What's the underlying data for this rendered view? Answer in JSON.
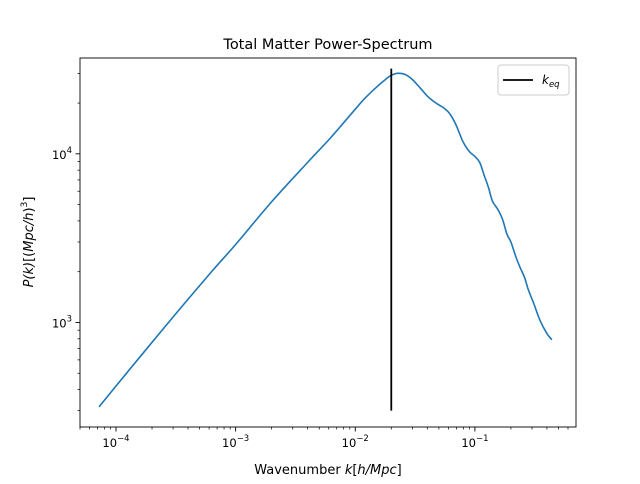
{
  "chart_data": {
    "type": "line",
    "title": "Total Matter Power-Spectrum",
    "xlabel": "Wavenumber k[h/Mpc]",
    "ylabel": "P(k)[(Mpc/h)^3]",
    "xscale": "log",
    "yscale": "log",
    "xlim": [
      5e-05,
      0.7
    ],
    "ylim": [
      240,
      37000
    ],
    "grid": false,
    "legend_position": "top-right",
    "x_ticks": [
      {
        "value": 0.0001,
        "base": "10",
        "exp": "−4"
      },
      {
        "value": 0.001,
        "base": "10",
        "exp": "−3"
      },
      {
        "value": 0.01,
        "base": "10",
        "exp": "−2"
      },
      {
        "value": 0.1,
        "base": "10",
        "exp": "−1"
      }
    ],
    "y_ticks": [
      {
        "value": 1000,
        "base": "10",
        "exp": "3"
      },
      {
        "value": 10000,
        "base": "10",
        "exp": "4"
      }
    ],
    "series": [
      {
        "color": "#1f77b4",
        "x": [
          7.21e-05,
          0.0001,
          0.000184,
          0.000344,
          0.000644,
          0.001,
          0.002,
          0.004,
          0.006,
          0.008,
          0.01,
          0.012,
          0.015,
          0.018,
          0.02,
          0.0225,
          0.026,
          0.03,
          0.035,
          0.04,
          0.045,
          0.05,
          0.055,
          0.06,
          0.065,
          0.07,
          0.075,
          0.08,
          0.09,
          0.1,
          0.11,
          0.12,
          0.13,
          0.14,
          0.155,
          0.17,
          0.185,
          0.2,
          0.22,
          0.24,
          0.26,
          0.28,
          0.31,
          0.35,
          0.4,
          0.44
        ],
        "y": [
          316,
          420,
          710,
          1210,
          2040,
          2900,
          5200,
          8900,
          12100,
          15300,
          18400,
          21300,
          24800,
          27700,
          29200,
          30000,
          29600,
          27600,
          24500,
          22000,
          20500,
          19500,
          18700,
          17700,
          16300,
          14700,
          13000,
          11700,
          10300,
          9650,
          8850,
          7400,
          6300,
          5250,
          4700,
          4100,
          3350,
          3000,
          2450,
          2100,
          1850,
          1560,
          1300,
          1030,
          860,
          790
        ]
      }
    ],
    "vlines": [
      {
        "x": 0.02,
        "y0": 300,
        "y1": 32000,
        "color": "#000000",
        "label": "k_eq"
      }
    ],
    "legend": [
      {
        "label_main": "k",
        "label_sub": "eq",
        "color": "#000000"
      }
    ]
  }
}
